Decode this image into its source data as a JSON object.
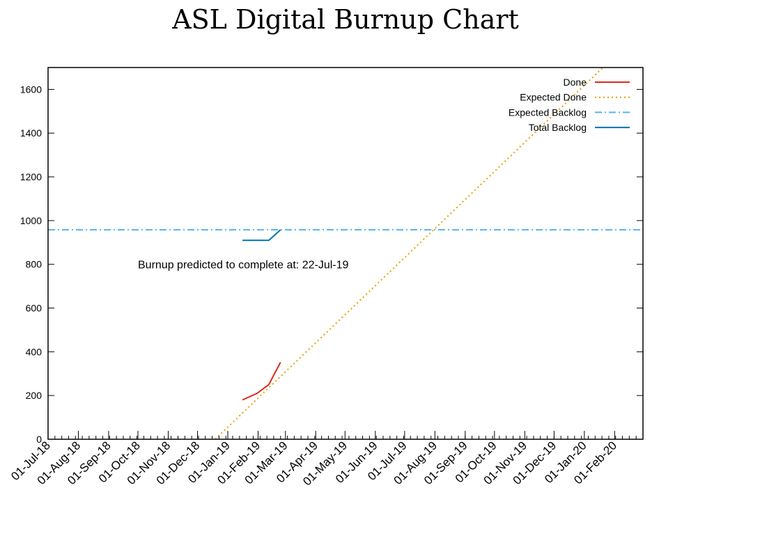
{
  "chart_data": {
    "type": "line",
    "title": "ASL Digital Burnup Chart",
    "xlabel": "",
    "ylabel": "",
    "x_axis_type": "date",
    "xlim": [
      "2018-07-01",
      "2020-03-01"
    ],
    "ylim": [
      0,
      1700
    ],
    "y_ticks": [
      0,
      200,
      400,
      600,
      800,
      1000,
      1200,
      1400,
      1600
    ],
    "x_ticks": [
      {
        "date": "2018-07-01",
        "label": "01-Jul-18"
      },
      {
        "date": "2018-08-01",
        "label": "01-Aug-18"
      },
      {
        "date": "2018-09-01",
        "label": "01-Sep-18"
      },
      {
        "date": "2018-10-01",
        "label": "01-Oct-18"
      },
      {
        "date": "2018-11-01",
        "label": "01-Nov-18"
      },
      {
        "date": "2018-12-01",
        "label": "01-Dec-18"
      },
      {
        "date": "2019-01-01",
        "label": "01-Jan-19"
      },
      {
        "date": "2019-02-01",
        "label": "01-Feb-19"
      },
      {
        "date": "2019-03-01",
        "label": "01-Mar-19"
      },
      {
        "date": "2019-04-01",
        "label": "01-Apr-19"
      },
      {
        "date": "2019-05-01",
        "label": "01-May-19"
      },
      {
        "date": "2019-06-01",
        "label": "01-Jun-19"
      },
      {
        "date": "2019-07-01",
        "label": "01-Jul-19"
      },
      {
        "date": "2019-08-01",
        "label": "01-Aug-19"
      },
      {
        "date": "2019-09-01",
        "label": "01-Sep-19"
      },
      {
        "date": "2019-10-01",
        "label": "01-Oct-19"
      },
      {
        "date": "2019-11-01",
        "label": "01-Nov-19"
      },
      {
        "date": "2019-12-01",
        "label": "01-Dec-19"
      },
      {
        "date": "2020-01-01",
        "label": "01-Jan-20"
      },
      {
        "date": "2020-02-01",
        "label": "01-Feb-20"
      }
    ],
    "grid": false,
    "legend_position": "top-right",
    "series": [
      {
        "name": "Done",
        "color": "#e0281b",
        "style": "solid",
        "points": [
          {
            "x": "2019-01-16",
            "y": 180
          },
          {
            "x": "2019-01-31",
            "y": 210
          },
          {
            "x": "2019-02-12",
            "y": 250
          },
          {
            "x": "2019-02-24",
            "y": 352
          }
        ]
      },
      {
        "name": "Expected Done",
        "color": "#e69f00",
        "style": "dotted",
        "points": [
          {
            "x": "2018-12-19",
            "y": 0
          },
          {
            "x": "2020-01-20",
            "y": 1700
          }
        ]
      },
      {
        "name": "Expected Backlog",
        "color": "#56b4e9",
        "style": "dash-dot",
        "points": [
          {
            "x": "2018-07-01",
            "y": 958
          },
          {
            "x": "2020-03-01",
            "y": 958
          }
        ]
      },
      {
        "name": "Total Backlog",
        "color": "#0072b2",
        "style": "solid",
        "points": [
          {
            "x": "2019-01-16",
            "y": 910
          },
          {
            "x": "2019-02-12",
            "y": 910
          },
          {
            "x": "2019-02-24",
            "y": 958
          }
        ]
      }
    ],
    "annotations": [
      {
        "text": "Burnup predicted to complete at: 22-Jul-19",
        "x": "2018-10-01",
        "y": 800
      }
    ]
  }
}
